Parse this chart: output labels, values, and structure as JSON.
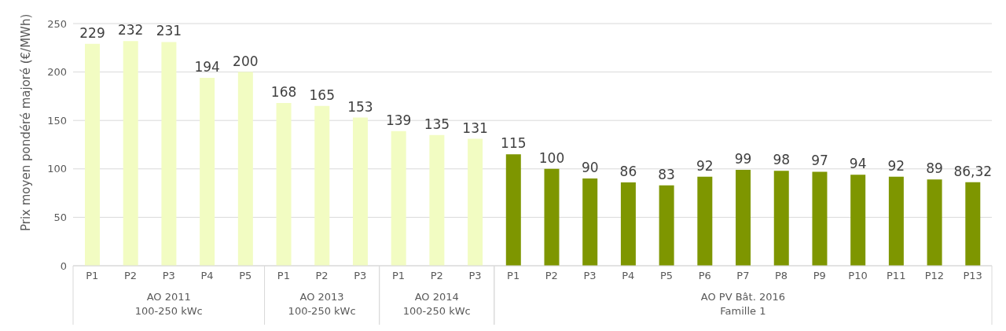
{
  "chart_data": {
    "type": "bar",
    "ylabel": "Prix moyen pondéré majoré (€/MWh)",
    "categories": [
      "P1",
      "P2",
      "P3",
      "P4",
      "P5",
      "P1",
      "P2",
      "P3",
      "P1",
      "P2",
      "P3",
      "P1",
      "P2",
      "P3",
      "P4",
      "P5",
      "P6",
      "P7",
      "P8",
      "P9",
      "P10",
      "P11",
      "P12",
      "P13"
    ],
    "stacked": true,
    "ylim": [
      0,
      250
    ],
    "yticks": [
      0,
      50,
      100,
      150,
      200,
      250
    ],
    "grid": "y",
    "legend": false,
    "series": [
      {
        "name": "AO 2011\n100-250 kWc",
        "color": "#f2fcc2",
        "values": [
          229,
          232,
          231,
          194,
          200,
          null,
          null,
          null,
          null,
          null,
          null,
          null,
          null,
          null,
          null,
          null,
          null,
          null,
          null,
          null,
          null,
          null,
          null,
          null
        ],
        "value_labels": [
          "229",
          "232",
          "231",
          "194",
          "200",
          null,
          null,
          null,
          null,
          null,
          null,
          null,
          null,
          null,
          null,
          null,
          null,
          null,
          null,
          null,
          null,
          null,
          null,
          null
        ]
      },
      {
        "name": "AO 2013\n100-250 kWc",
        "color": "#f2fcc2",
        "values": [
          null,
          null,
          null,
          null,
          null,
          168,
          165,
          153,
          null,
          null,
          null,
          null,
          null,
          null,
          null,
          null,
          null,
          null,
          null,
          null,
          null,
          null,
          null,
          null
        ],
        "value_labels": [
          null,
          null,
          null,
          null,
          null,
          "168",
          "165",
          "153",
          null,
          null,
          null,
          null,
          null,
          null,
          null,
          null,
          null,
          null,
          null,
          null,
          null,
          null,
          null,
          null
        ]
      },
      {
        "name": "AO 2014\n100-250 kWc",
        "color": "#f2fcc2",
        "values": [
          null,
          null,
          null,
          null,
          null,
          null,
          null,
          null,
          139,
          135,
          131,
          null,
          null,
          null,
          null,
          null,
          null,
          null,
          null,
          null,
          null,
          null,
          null,
          null
        ],
        "value_labels": [
          null,
          null,
          null,
          null,
          null,
          null,
          null,
          null,
          "139",
          "135",
          "131",
          null,
          null,
          null,
          null,
          null,
          null,
          null,
          null,
          null,
          null,
          null,
          null,
          null
        ]
      },
      {
        "name": "AO PV Bât. 2016\nFamille 1",
        "color": "#7e9600",
        "values": [
          null,
          null,
          null,
          null,
          null,
          null,
          null,
          null,
          null,
          null,
          null,
          115,
          100,
          90,
          86,
          83,
          92,
          99,
          98,
          97,
          94,
          92,
          89,
          86.32
        ],
        "value_labels": [
          null,
          null,
          null,
          null,
          null,
          null,
          null,
          null,
          null,
          null,
          null,
          "115",
          "100",
          "90",
          "86",
          "83",
          "92",
          "99",
          "98",
          "97",
          "94",
          "92",
          "89",
          "86,32"
        ]
      }
    ]
  }
}
